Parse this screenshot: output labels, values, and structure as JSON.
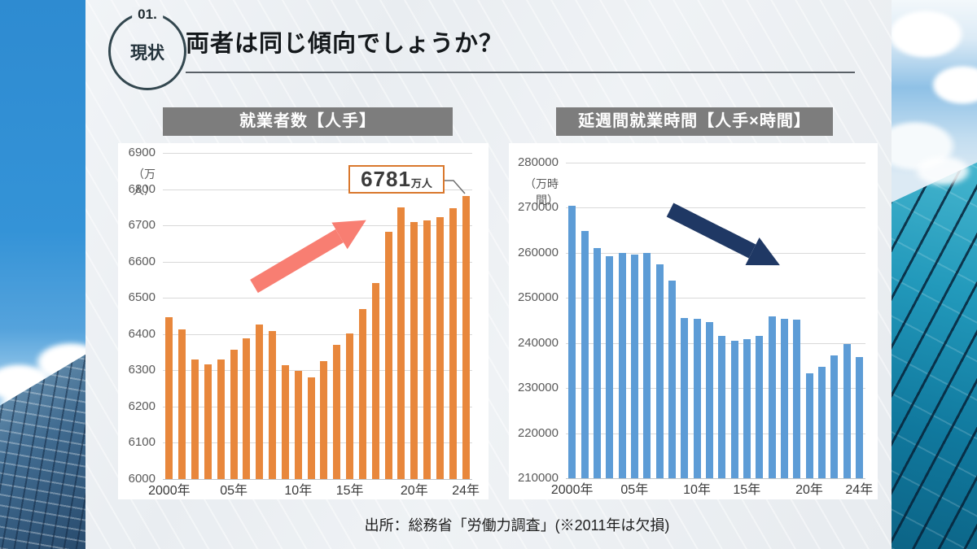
{
  "slide": {
    "badge": {
      "number": "01.",
      "label": "現状"
    },
    "title": "両者は同じ傾向でしょうか？",
    "source": "出所：総務省「労働力調査」(※2011年は欠損)"
  },
  "chart_data": [
    {
      "type": "bar",
      "title": "就業者数【人手】",
      "unit": "（万人）",
      "ylim": [
        6000,
        6900
      ],
      "ytick_step": 100,
      "grid": true,
      "missing_year": "2011",
      "categories": [
        "2000",
        "2001",
        "2002",
        "2003",
        "2004",
        "2005",
        "2006",
        "2007",
        "2008",
        "2009",
        "2010",
        "2012",
        "2013",
        "2014",
        "2015",
        "2016",
        "2017",
        "2018",
        "2019",
        "2020",
        "2021",
        "2022",
        "2023",
        "2024"
      ],
      "values": [
        6446,
        6412,
        6330,
        6316,
        6329,
        6356,
        6389,
        6427,
        6409,
        6314,
        6298,
        6280,
        6326,
        6371,
        6402,
        6470,
        6542,
        6682,
        6750,
        6710,
        6713,
        6723,
        6747,
        6781
      ],
      "x_ticks": [
        {
          "label": "2000年",
          "index": 0
        },
        {
          "label": "05年",
          "index": 5
        },
        {
          "label": "10年",
          "index": 10
        },
        {
          "label": "15年",
          "index": 14
        },
        {
          "label": "20年",
          "index": 19
        },
        {
          "label": "24年",
          "index": 23
        }
      ],
      "bar_color": "#E8873C",
      "annotation": {
        "value": "6781",
        "unit": "万人"
      },
      "trend_arrow": {
        "direction": "up-right",
        "color": "#F87E72"
      }
    },
    {
      "type": "bar",
      "title": "延週間就業時間【人手×時間】",
      "unit": "（万時間）",
      "ylim": [
        210000,
        280000
      ],
      "ytick_step": 10000,
      "grid": true,
      "missing_year": "2011",
      "categories": [
        "2000",
        "2001",
        "2002",
        "2003",
        "2004",
        "2005",
        "2006",
        "2007",
        "2008",
        "2009",
        "2010",
        "2012",
        "2013",
        "2014",
        "2015",
        "2016",
        "2017",
        "2018",
        "2019",
        "2020",
        "2021",
        "2022",
        "2023",
        "2024"
      ],
      "values": [
        270400,
        264900,
        261000,
        259200,
        259900,
        259600,
        259900,
        257400,
        253800,
        245600,
        245400,
        244600,
        241600,
        240500,
        240900,
        241500,
        246000,
        245400,
        245200,
        233300,
        234800,
        237200,
        239700,
        236900
      ],
      "x_ticks": [
        {
          "label": "2000年",
          "index": 0
        },
        {
          "label": "05年",
          "index": 5
        },
        {
          "label": "10年",
          "index": 10
        },
        {
          "label": "15年",
          "index": 14
        },
        {
          "label": "20年",
          "index": 19
        },
        {
          "label": "24年",
          "index": 23
        }
      ],
      "bar_color": "#5D9CD6",
      "trend_arrow": {
        "direction": "down-right",
        "color": "#1F3864"
      }
    }
  ]
}
